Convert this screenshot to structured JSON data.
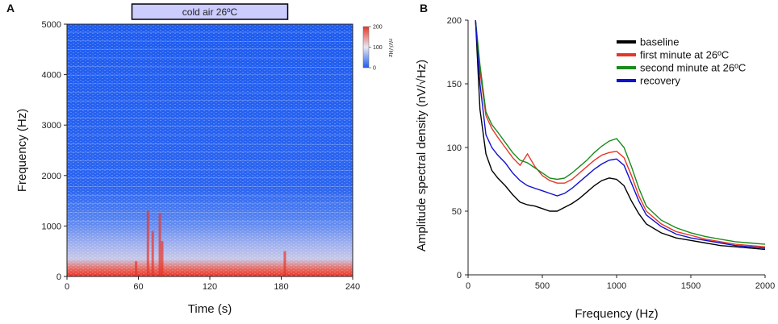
{
  "panels": {
    "a_letter": "A",
    "b_letter": "B"
  },
  "chart_data": [
    {
      "id": "A",
      "type": "heatmap",
      "annotation": "cold air 26ºC",
      "xlabel": "Time (s)",
      "ylabel": "Frequency (Hz)",
      "xlim": [
        0,
        240
      ],
      "ylim": [
        0,
        5000
      ],
      "xticks": [
        "0",
        "60",
        "120",
        "180",
        "240"
      ],
      "yticks": [
        "0",
        "1000",
        "2000",
        "3000",
        "4000",
        "5000"
      ],
      "stimulus_window_s": [
        60,
        180
      ],
      "colorbar": {
        "label": "nV/√Hz",
        "ticks": [
          "200",
          "100",
          "0"
        ],
        "range": [
          0,
          200
        ]
      },
      "colors": {
        "low": "#1e5cf0",
        "mid": "#e8e8f2",
        "high": "#e8352a",
        "annotation_fill": "#ccccff"
      }
    },
    {
      "id": "B",
      "type": "line",
      "xlabel": "Frequency (Hz)",
      "ylabel": "Amplitude spectral density (nV/√Hz)",
      "xlim": [
        0,
        2000
      ],
      "ylim": [
        0,
        200
      ],
      "xticks": [
        "0",
        "500",
        "1000",
        "1500",
        "2000"
      ],
      "yticks": [
        "0",
        "50",
        "100",
        "150",
        "200"
      ],
      "x": [
        50,
        80,
        120,
        160,
        200,
        250,
        300,
        350,
        400,
        450,
        500,
        550,
        600,
        650,
        700,
        750,
        800,
        850,
        900,
        950,
        1000,
        1050,
        1100,
        1150,
        1200,
        1300,
        1400,
        1500,
        1600,
        1700,
        1800,
        1900,
        2000
      ],
      "series": [
        {
          "name": "baseline",
          "color": "#000000",
          "values": [
            200,
            130,
            95,
            82,
            76,
            70,
            63,
            57,
            55,
            54,
            52,
            50,
            50,
            53,
            56,
            60,
            65,
            70,
            74,
            76,
            75,
            70,
            58,
            48,
            40,
            33,
            29,
            27,
            25,
            23,
            22,
            21,
            20
          ]
        },
        {
          "name": "first minute at 26ºC",
          "color": "#e8352a",
          "values": [
            200,
            160,
            125,
            115,
            108,
            100,
            92,
            86,
            95,
            85,
            78,
            74,
            72,
            72,
            75,
            80,
            85,
            90,
            94,
            96,
            97,
            92,
            78,
            62,
            50,
            40,
            34,
            31,
            28,
            26,
            24,
            23,
            22
          ]
        },
        {
          "name": "second minute at 26ºC",
          "color": "#1a8a1a",
          "values": [
            200,
            165,
            128,
            118,
            112,
            104,
            96,
            90,
            88,
            84,
            80,
            76,
            75,
            76,
            80,
            85,
            90,
            96,
            101,
            105,
            107,
            100,
            85,
            68,
            54,
            43,
            37,
            33,
            30,
            28,
            26,
            25,
            24
          ]
        },
        {
          "name": "recovery",
          "color": "#1010d0",
          "values": [
            200,
            150,
            110,
            100,
            94,
            88,
            80,
            74,
            70,
            68,
            66,
            64,
            62,
            64,
            68,
            73,
            78,
            83,
            87,
            90,
            91,
            86,
            72,
            58,
            47,
            38,
            32,
            29,
            27,
            25,
            23,
            22,
            21
          ]
        }
      ]
    }
  ]
}
